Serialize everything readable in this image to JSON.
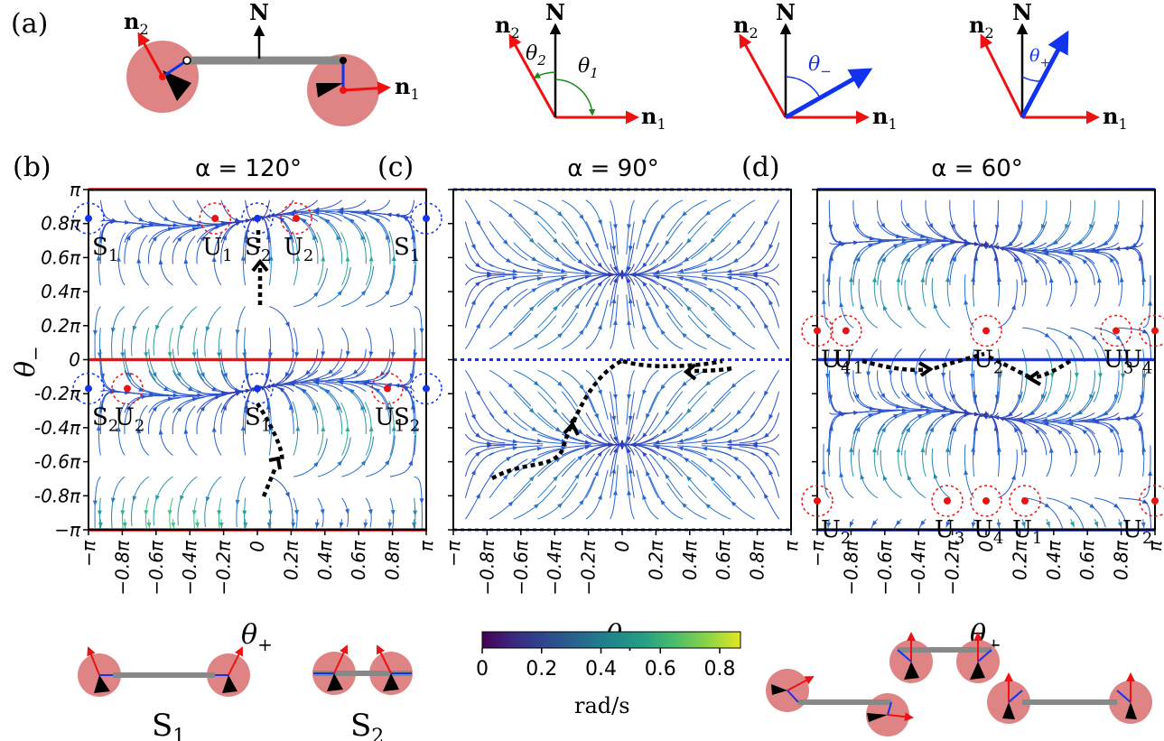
{
  "figure": {
    "panel_a": {
      "letter": "(a)",
      "labels": {
        "N": "N",
        "n1": "n",
        "n1_sub": "1",
        "n2": "n",
        "n2_sub": "2",
        "theta1": "θ",
        "theta1_sub": "1",
        "theta2": "θ",
        "theta2_sub": "2",
        "theta_minus": "θ",
        "theta_minus_sub": "−",
        "theta_plus": "θ",
        "theta_plus_sub": "+"
      }
    },
    "colorbar": {
      "ticks": [
        "0",
        "0.2",
        "0.4",
        "0.6",
        "0.8"
      ],
      "label": "rad/s",
      "range": [
        0,
        0.87
      ]
    },
    "bottom_labels": {
      "S1": "S",
      "S1_sub": "1",
      "S2": "S",
      "S2_sub": "2"
    },
    "colors": {
      "red": "#ee1111",
      "blue": "#1133ee",
      "disk": "#df8484",
      "arrow": "#000000"
    }
  },
  "chart_data": [
    {
      "type": "streamplot",
      "letter": "(b)",
      "title": "α = 120°",
      "xlabel": "θ",
      "xlabel_sub": "+",
      "ylabel": "θ",
      "ylabel_sub": "−",
      "xlim": [
        -3.1416,
        3.1416
      ],
      "ylim": [
        -3.1416,
        3.1416
      ],
      "xticks": [
        "−π",
        "−0.8π",
        "−0.6π",
        "−0.4π",
        "−0.2π",
        "0",
        "0.2π",
        "0.4π",
        "0.6π",
        "0.8π",
        "π"
      ],
      "yticks": [
        "π",
        "0.8π",
        "0.6π",
        "0.4π",
        "0.2π",
        "0",
        "-0.2π",
        "-0.4π",
        "-0.6π",
        "-0.8π",
        "−π"
      ],
      "fixed_points": [
        {
          "label": "S",
          "sub": "1",
          "x": -1.0,
          "y": 0.83,
          "kind": "stable"
        },
        {
          "label": "U",
          "sub": "1",
          "x": -0.25,
          "y": 0.83,
          "kind": "unstable"
        },
        {
          "label": "S",
          "sub": "2",
          "x": 0.0,
          "y": 0.83,
          "kind": "stable"
        },
        {
          "label": "U",
          "sub": "2",
          "x": 0.23,
          "y": 0.83,
          "kind": "unstable"
        },
        {
          "label": "S",
          "sub": "1",
          "x": 1.0,
          "y": 0.83,
          "kind": "stable"
        },
        {
          "label": "S",
          "sub": "2",
          "x": -1.0,
          "y": -0.17,
          "kind": "stable"
        },
        {
          "label": "U",
          "sub": "2",
          "x": -0.77,
          "y": -0.17,
          "kind": "unstable"
        },
        {
          "label": "S",
          "sub": "1",
          "x": 0.0,
          "y": -0.17,
          "kind": "stable"
        },
        {
          "label": "U",
          "sub": "1",
          "x": 0.77,
          "y": -0.17,
          "kind": "unstable"
        },
        {
          "label": "S",
          "sub": "2",
          "x": 1.0,
          "y": -0.17,
          "kind": "stable"
        }
      ],
      "boundary_lines": [
        {
          "y": 1.0,
          "color": "red"
        },
        {
          "y": 0.0,
          "color": "red"
        },
        {
          "y": -1.0,
          "color": "red"
        }
      ]
    },
    {
      "type": "streamplot",
      "letter": "(c)",
      "title": "α = 90°",
      "xlabel": "θ",
      "xlabel_sub": "+",
      "xticks": [
        "−π",
        "−0.8π",
        "−0.6π",
        "−0.4π",
        "−0.2π",
        "0",
        "0.2π",
        "0.4π",
        "0.6π",
        "0.8π",
        "π"
      ],
      "boundary_lines": [
        {
          "y": 1.0,
          "color": "blue-dotted"
        },
        {
          "y": 0.0,
          "color": "blue-dotted"
        },
        {
          "y": -1.0,
          "color": "blue-dotted"
        }
      ]
    },
    {
      "type": "streamplot",
      "letter": "(d)",
      "title": "α = 60°",
      "xlabel": "θ",
      "xlabel_sub": "+",
      "xticks": [
        "−π",
        "−0.8π",
        "−0.6π",
        "−0.4π",
        "−0.2π",
        "0",
        "0.2π",
        "0.4π",
        "0.6π",
        "0.8π",
        "π"
      ],
      "fixed_points": [
        {
          "label": "U",
          "sub": "4",
          "x": -1.0,
          "y": 0.17,
          "kind": "unstable"
        },
        {
          "label": "U",
          "sub": "1",
          "x": -0.83,
          "y": 0.17,
          "kind": "unstable"
        },
        {
          "label": "U",
          "sub": "2",
          "x": 0.0,
          "y": 0.17,
          "kind": "unstable"
        },
        {
          "label": "U",
          "sub": "3",
          "x": 0.77,
          "y": 0.17,
          "kind": "unstable"
        },
        {
          "label": "U",
          "sub": "4",
          "x": 1.0,
          "y": 0.17,
          "kind": "unstable"
        },
        {
          "label": "U",
          "sub": "2",
          "x": -1.0,
          "y": -0.83,
          "kind": "unstable"
        },
        {
          "label": "U",
          "sub": "3",
          "x": -0.23,
          "y": -0.83,
          "kind": "unstable"
        },
        {
          "label": "U",
          "sub": "4",
          "x": 0.0,
          "y": -0.83,
          "kind": "unstable"
        },
        {
          "label": "U",
          "sub": "1",
          "x": 0.23,
          "y": -0.83,
          "kind": "unstable"
        },
        {
          "label": "U",
          "sub": "2",
          "x": 1.0,
          "y": -0.83,
          "kind": "unstable"
        }
      ],
      "boundary_lines": [
        {
          "y": 1.0,
          "color": "blue"
        },
        {
          "y": 0.0,
          "color": "blue"
        },
        {
          "y": -1.0,
          "color": "blue"
        }
      ]
    }
  ]
}
